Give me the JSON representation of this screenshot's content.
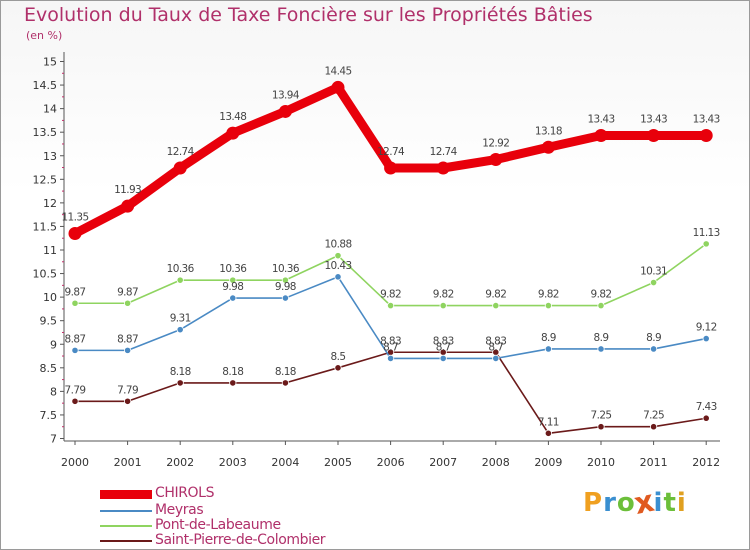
{
  "chart_data": {
    "type": "line",
    "title": "Evolution du Taux de Taxe Foncière sur les Propriétés Bâties",
    "ylabel": "(en %)",
    "xlabel": "",
    "ylim": [
      7,
      15
    ],
    "yticks": [
      "7",
      "7.5",
      "8",
      "8.5",
      "9",
      "9.5",
      "10",
      "10.5",
      "11",
      "11.5",
      "12",
      "12.5",
      "13",
      "13.5",
      "14",
      "14.5",
      "15"
    ],
    "x": [
      "2000",
      "2001",
      "2002",
      "2003",
      "2004",
      "2005",
      "2006",
      "2007",
      "2008",
      "2009",
      "2010",
      "2011",
      "2012"
    ],
    "series": [
      {
        "name": "CHIROLS",
        "color": "#e8000b",
        "values": [
          11.35,
          11.93,
          12.74,
          13.48,
          13.94,
          14.45,
          12.74,
          12.74,
          12.92,
          13.18,
          13.43,
          13.43,
          13.43
        ]
      },
      {
        "name": "Meyras",
        "color": "#4a8ac4",
        "values": [
          8.87,
          8.87,
          9.31,
          9.98,
          9.98,
          10.43,
          8.7,
          8.7,
          8.7,
          8.9,
          8.9,
          8.9,
          9.12
        ]
      },
      {
        "name": "Pont-de-Labeaume",
        "color": "#8fd460",
        "values": [
          9.87,
          9.87,
          10.36,
          10.36,
          10.36,
          10.88,
          9.82,
          9.82,
          9.82,
          9.82,
          9.82,
          10.31,
          11.13
        ]
      },
      {
        "name": "Saint-Pierre-de-Colombier",
        "color": "#6b1a1a",
        "values": [
          7.79,
          7.79,
          8.18,
          8.18,
          8.18,
          8.5,
          8.83,
          8.83,
          8.83,
          7.11,
          7.25,
          7.25,
          7.43
        ]
      }
    ],
    "data_labels": [
      [
        "11.35",
        "11.93",
        "12.74",
        "13.48",
        "13.94",
        "14.45",
        "12.74",
        "12.74",
        "12.92",
        "13.18",
        "13.43",
        "13.43",
        "13.43"
      ],
      [
        "8.87",
        "8.87",
        "9.31",
        "9.98",
        "9.98",
        "10.43",
        "8.7",
        "8.7",
        "8.7",
        "8.9",
        "8.9",
        "8.9",
        "9.12"
      ],
      [
        "9.87",
        "9.87",
        "10.36",
        "10.36",
        "10.36",
        "10.88",
        "9.82",
        "9.82",
        "9.82",
        "9.82",
        "9.82",
        "10.31",
        "11.13"
      ],
      [
        "7.79",
        "7.79",
        "8.18",
        "8.18",
        "8.18",
        "8.5",
        "8.83",
        "8.83",
        "8.83",
        "7.11",
        "7.25",
        "7.25",
        "7.43"
      ]
    ],
    "legend": [
      "CHIROLS",
      "Meyras",
      "Pont-de-Labeaume",
      "Saint-Pierre-de-Colombier"
    ],
    "legend_position": "bottom-left",
    "grid": false
  },
  "logo": {
    "text": "Proxiti",
    "colors": [
      "#f0a020",
      "#3a8fd0",
      "#6cbf3a",
      "#e05a20",
      "#3a8fd0",
      "#6cbf3a",
      "#e0a020"
    ]
  }
}
